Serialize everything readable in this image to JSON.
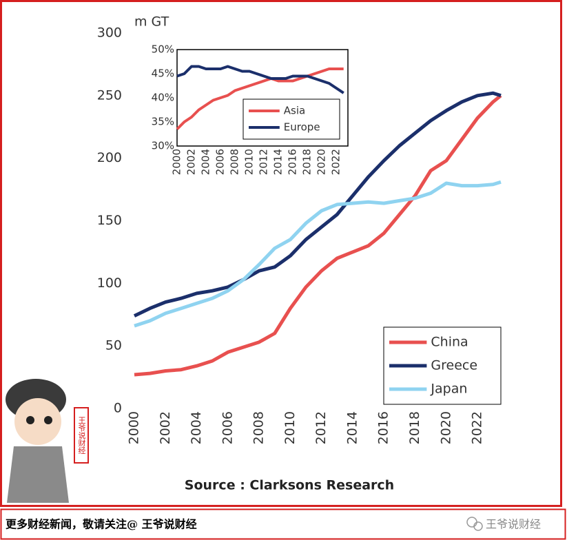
{
  "chart_data": [
    {
      "type": "line",
      "ylabel": "m GT",
      "source": "Source : Clarksons Research",
      "x": [
        2000,
        2001,
        2002,
        2003,
        2004,
        2005,
        2006,
        2007,
        2008,
        2009,
        2010,
        2011,
        2012,
        2013,
        2014,
        2015,
        2016,
        2017,
        2018,
        2019,
        2020,
        2021,
        2022,
        2023,
        2023.5
      ],
      "xlim": [
        2000,
        2023.5
      ],
      "xticks": [
        2000,
        2002,
        2004,
        2006,
        2008,
        2010,
        2012,
        2014,
        2016,
        2018,
        2020,
        2022
      ],
      "ylim": [
        0,
        300
      ],
      "yticks": [
        0,
        50,
        100,
        150,
        200,
        250,
        300
      ],
      "legend": "lower right",
      "frame": false,
      "series": [
        {
          "name": "China",
          "color": "#e8504f",
          "values": [
            27,
            28,
            30,
            31,
            34,
            38,
            45,
            49,
            53,
            60,
            80,
            97,
            110,
            120,
            125,
            130,
            140,
            155,
            170,
            190,
            198,
            215,
            232,
            245,
            250
          ]
        },
        {
          "name": "Greece",
          "color": "#1b2f6b",
          "values": [
            74,
            80,
            85,
            88,
            92,
            94,
            97,
            103,
            110,
            113,
            122,
            135,
            145,
            155,
            170,
            185,
            198,
            210,
            220,
            230,
            238,
            245,
            250,
            252,
            250
          ]
        },
        {
          "name": "Japan",
          "color": "#8fd3f0",
          "values": [
            66,
            70,
            76,
            80,
            84,
            88,
            94,
            103,
            115,
            128,
            135,
            148,
            158,
            163,
            164,
            165,
            164,
            166,
            168,
            172,
            180,
            178,
            178,
            179,
            181
          ]
        }
      ]
    },
    {
      "type": "line",
      "x": [
        2000,
        2001,
        2002,
        2003,
        2004,
        2005,
        2006,
        2007,
        2008,
        2009,
        2010,
        2011,
        2012,
        2013,
        2014,
        2015,
        2016,
        2017,
        2018,
        2019,
        2020,
        2021,
        2022,
        2023
      ],
      "xlim": [
        2000,
        2023.6
      ],
      "xticks": [
        2000,
        2002,
        2004,
        2006,
        2008,
        2010,
        2012,
        2014,
        2016,
        2018,
        2020,
        2022
      ],
      "ylim": [
        30,
        50
      ],
      "yticks": [
        {
          "value": 30,
          "label": "30%"
        },
        {
          "value": 35,
          "label": "35%"
        },
        {
          "value": 40,
          "label": "40%"
        },
        {
          "value": 45,
          "label": "45%"
        },
        {
          "value": 50,
          "label": "50%"
        }
      ],
      "legend": "lower right",
      "frame": true,
      "series": [
        {
          "name": "Asia",
          "color": "#e8504f",
          "values": [
            33.5,
            35,
            36,
            37.5,
            38.5,
            39.5,
            40,
            40.5,
            41.5,
            42,
            42.5,
            43,
            43.5,
            44,
            43.5,
            43.5,
            43.5,
            44,
            44.5,
            45,
            45.5,
            46,
            46,
            46
          ]
        },
        {
          "name": "Europe",
          "color": "#1b2f6b",
          "values": [
            44.5,
            45,
            46.5,
            46.5,
            46,
            46,
            46,
            46.5,
            46,
            45.5,
            45.5,
            45,
            44.5,
            44,
            44,
            44,
            44.5,
            44.5,
            44.5,
            44,
            43.5,
            43,
            42,
            41
          ]
        }
      ]
    }
  ],
  "badge": "王爷说财经",
  "footer": {
    "text": "更多财经新闻，敬请关注@ 王爷说财经",
    "account": "王爷说财经"
  }
}
